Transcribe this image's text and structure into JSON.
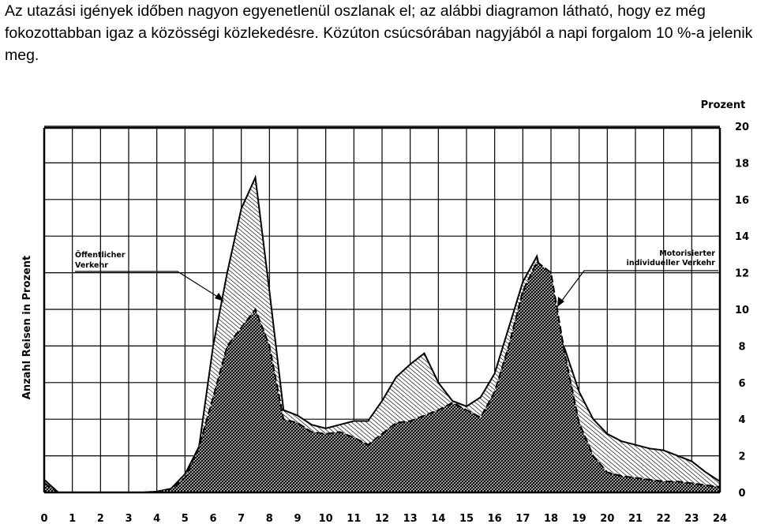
{
  "caption": "Az utazási igények időben nagyon egyenetlenül oszlanak el; az alábbi diagramon látható, hogy ez még fokozottabban igaz a közösségi közlekedésre. Közúton csúcsórában nagyjából a napi forgalom 10 %-a jelenik meg.",
  "chart_data": {
    "type": "area",
    "ylabel": "Anzahl Reisen in Prozent",
    "y2label": "Prozent",
    "x_ticks": [
      "0",
      "1",
      "2",
      "3",
      "4",
      "5",
      "6",
      "7",
      "8",
      "9",
      "10",
      "11",
      "12",
      "13",
      "14",
      "15",
      "16",
      "17",
      "18",
      "19",
      "20",
      "21",
      "22",
      "23",
      "24"
    ],
    "y_ticks": [
      "0",
      "2",
      "4",
      "6",
      "8",
      "10",
      "12",
      "14",
      "16",
      "18",
      "20"
    ],
    "xlim": [
      0,
      24
    ],
    "ylim": [
      0,
      20
    ],
    "grid": true,
    "annotations": [
      {
        "lines": [
          "Öffentlicher",
          "Verkehr"
        ],
        "series": "Öffentlicher Verkehr"
      },
      {
        "lines": [
          "Motorisierter",
          "individueller Verkehr"
        ],
        "series": "Motorisierter individueller Verkehr"
      }
    ],
    "series": [
      {
        "name": "Öffentlicher Verkehr",
        "x": [
          0,
          0.5,
          3.5,
          4,
          4.5,
          5,
          5.5,
          6,
          6.5,
          7,
          7.5,
          8,
          8.5,
          9,
          9.5,
          10,
          10.5,
          11,
          11.5,
          12,
          12.5,
          13,
          13.5,
          14,
          14.5,
          15,
          15.5,
          16,
          16.5,
          17,
          17.5,
          18,
          18.5,
          19,
          19.5,
          20,
          20.5,
          21,
          21.5,
          22,
          22.5,
          23,
          23.5,
          24
        ],
        "y": [
          0.7,
          0,
          0,
          0.05,
          0.2,
          1.0,
          2.5,
          8.0,
          12.0,
          15.5,
          17.2,
          11.0,
          4.5,
          4.2,
          3.7,
          3.5,
          3.7,
          3.9,
          3.9,
          5.0,
          6.3,
          7.0,
          7.6,
          6.0,
          5.0,
          4.7,
          5.2,
          6.5,
          9.0,
          11.5,
          12.9,
          9.5,
          7.8,
          5.5,
          4.0,
          3.2,
          2.8,
          2.6,
          2.4,
          2.3,
          2.0,
          1.7,
          1.1,
          0.6
        ]
      },
      {
        "name": "Motorisierter individueller Verkehr",
        "x": [
          0,
          0.5,
          3.5,
          4,
          4.5,
          5,
          5.5,
          6,
          6.5,
          7,
          7.5,
          8,
          8.5,
          9,
          9.5,
          10,
          10.5,
          11,
          11.5,
          12,
          12.5,
          13,
          13.5,
          14,
          14.5,
          15,
          15.5,
          16,
          16.5,
          17,
          17.5,
          18,
          18.5,
          19,
          19.5,
          20,
          20.5,
          21,
          21.5,
          22,
          22.5,
          23,
          23.5,
          24
        ],
        "y": [
          0.5,
          0,
          0,
          0.05,
          0.2,
          0.8,
          2.5,
          5.2,
          8.0,
          9.0,
          10.0,
          8.0,
          4.0,
          3.8,
          3.3,
          3.2,
          3.3,
          3.0,
          2.6,
          3.2,
          3.8,
          3.9,
          4.2,
          4.5,
          4.9,
          4.5,
          4.1,
          5.5,
          8.0,
          11.0,
          12.6,
          12.0,
          7.5,
          3.8,
          2.0,
          1.1,
          0.9,
          0.8,
          0.7,
          0.6,
          0.6,
          0.5,
          0.4,
          0.3
        ]
      }
    ]
  }
}
